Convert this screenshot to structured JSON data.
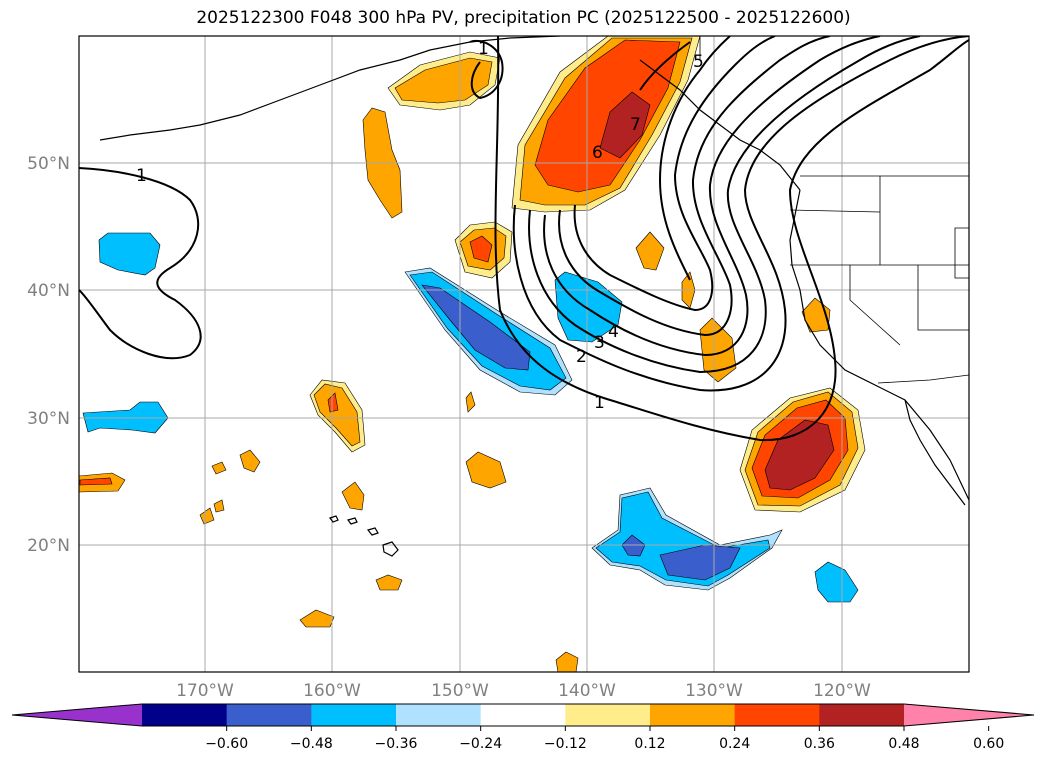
{
  "title": "2025122300 F048 300 hPa PV, precipitation PC (2025122500 - 2025122600)",
  "map": {
    "projection": "plate-carree",
    "lon_range": [
      -180,
      -110
    ],
    "lat_range": [
      10,
      60
    ],
    "lat_ticks": [
      {
        "value": 20,
        "label": "20°N"
      },
      {
        "value": 30,
        "label": "30°N"
      },
      {
        "value": 40,
        "label": "40°N"
      },
      {
        "value": 50,
        "label": "50°N"
      }
    ],
    "lon_ticks": [
      {
        "value": -170,
        "label": "170°W"
      },
      {
        "value": -160,
        "label": "160°W"
      },
      {
        "value": -150,
        "label": "150°W"
      },
      {
        "value": -140,
        "label": "140°W"
      },
      {
        "value": -130,
        "label": "130°W"
      },
      {
        "value": -120,
        "label": "120°W"
      }
    ],
    "pv_contour_labels": [
      "1",
      "1",
      "1",
      "2",
      "3",
      "4",
      "5",
      "6",
      "7"
    ]
  },
  "colorbar": {
    "levels": [
      "−0.60",
      "−0.48",
      "−0.36",
      "−0.24",
      "−0.12",
      "0.12",
      "0.24",
      "0.36",
      "0.48",
      "0.60"
    ],
    "colors": [
      "#9932cc",
      "#00008b",
      "#3a5fcd",
      "#00bfff",
      "#b0e2ff",
      "#ffffff",
      "#ffec8b",
      "#ffa500",
      "#ff4500",
      "#b22222",
      "#ff82ab"
    ]
  }
}
